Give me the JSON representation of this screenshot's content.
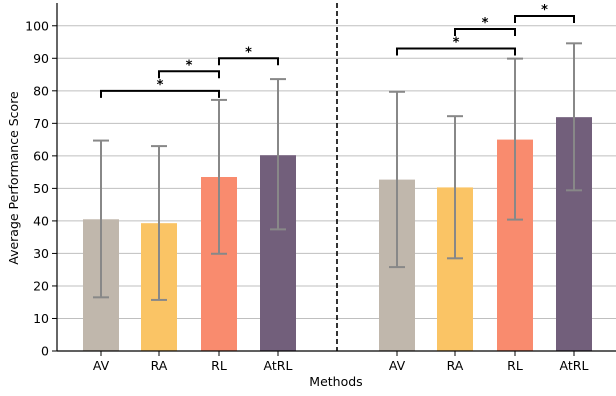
{
  "chart_data": {
    "type": "bar",
    "xlabel": "Methods",
    "ylabel": "Average Performance Score",
    "ylim": [
      0,
      107
    ],
    "yticks": [
      0,
      10,
      20,
      30,
      40,
      50,
      60,
      70,
      80,
      90,
      100
    ],
    "grid": "horizontal",
    "separator": "dashed vertical line between groups",
    "colors": {
      "AV": "#C0B7AC",
      "RA": "#FAC465",
      "RL": "#F98B6E",
      "AtRL": "#725F7B",
      "errorbar": "#888888",
      "grid": "#bfbfbf"
    },
    "groups": [
      {
        "bars": [
          {
            "category": "AV",
            "value": 40.5,
            "err_low": 16.5,
            "err_high": 64.7
          },
          {
            "category": "RA",
            "value": 39.3,
            "err_low": 15.7,
            "err_high": 63.0
          },
          {
            "category": "RL",
            "value": 53.5,
            "err_low": 29.9,
            "err_high": 77.2
          },
          {
            "category": "AtRL",
            "value": 60.2,
            "err_low": 37.4,
            "err_high": 83.6
          }
        ],
        "significance": [
          {
            "from": 0,
            "to": 2,
            "y": 80,
            "label": "*"
          },
          {
            "from": 1,
            "to": 2,
            "y": 86,
            "label": "*"
          },
          {
            "from": 2,
            "to": 3,
            "y": 90,
            "label": "*"
          }
        ]
      },
      {
        "bars": [
          {
            "category": "AV",
            "value": 52.7,
            "err_low": 25.8,
            "err_high": 79.7
          },
          {
            "category": "RA",
            "value": 50.3,
            "err_low": 28.5,
            "err_high": 72.2
          },
          {
            "category": "RL",
            "value": 65.0,
            "err_low": 40.4,
            "err_high": 89.9
          },
          {
            "category": "AtRL",
            "value": 71.9,
            "err_low": 49.4,
            "err_high": 94.6
          }
        ],
        "significance": [
          {
            "from": 0,
            "to": 2,
            "y": 93,
            "label": "*"
          },
          {
            "from": 1,
            "to": 2,
            "y": 99,
            "label": "*"
          },
          {
            "from": 2,
            "to": 3,
            "y": 103,
            "label": "*"
          }
        ]
      }
    ]
  }
}
